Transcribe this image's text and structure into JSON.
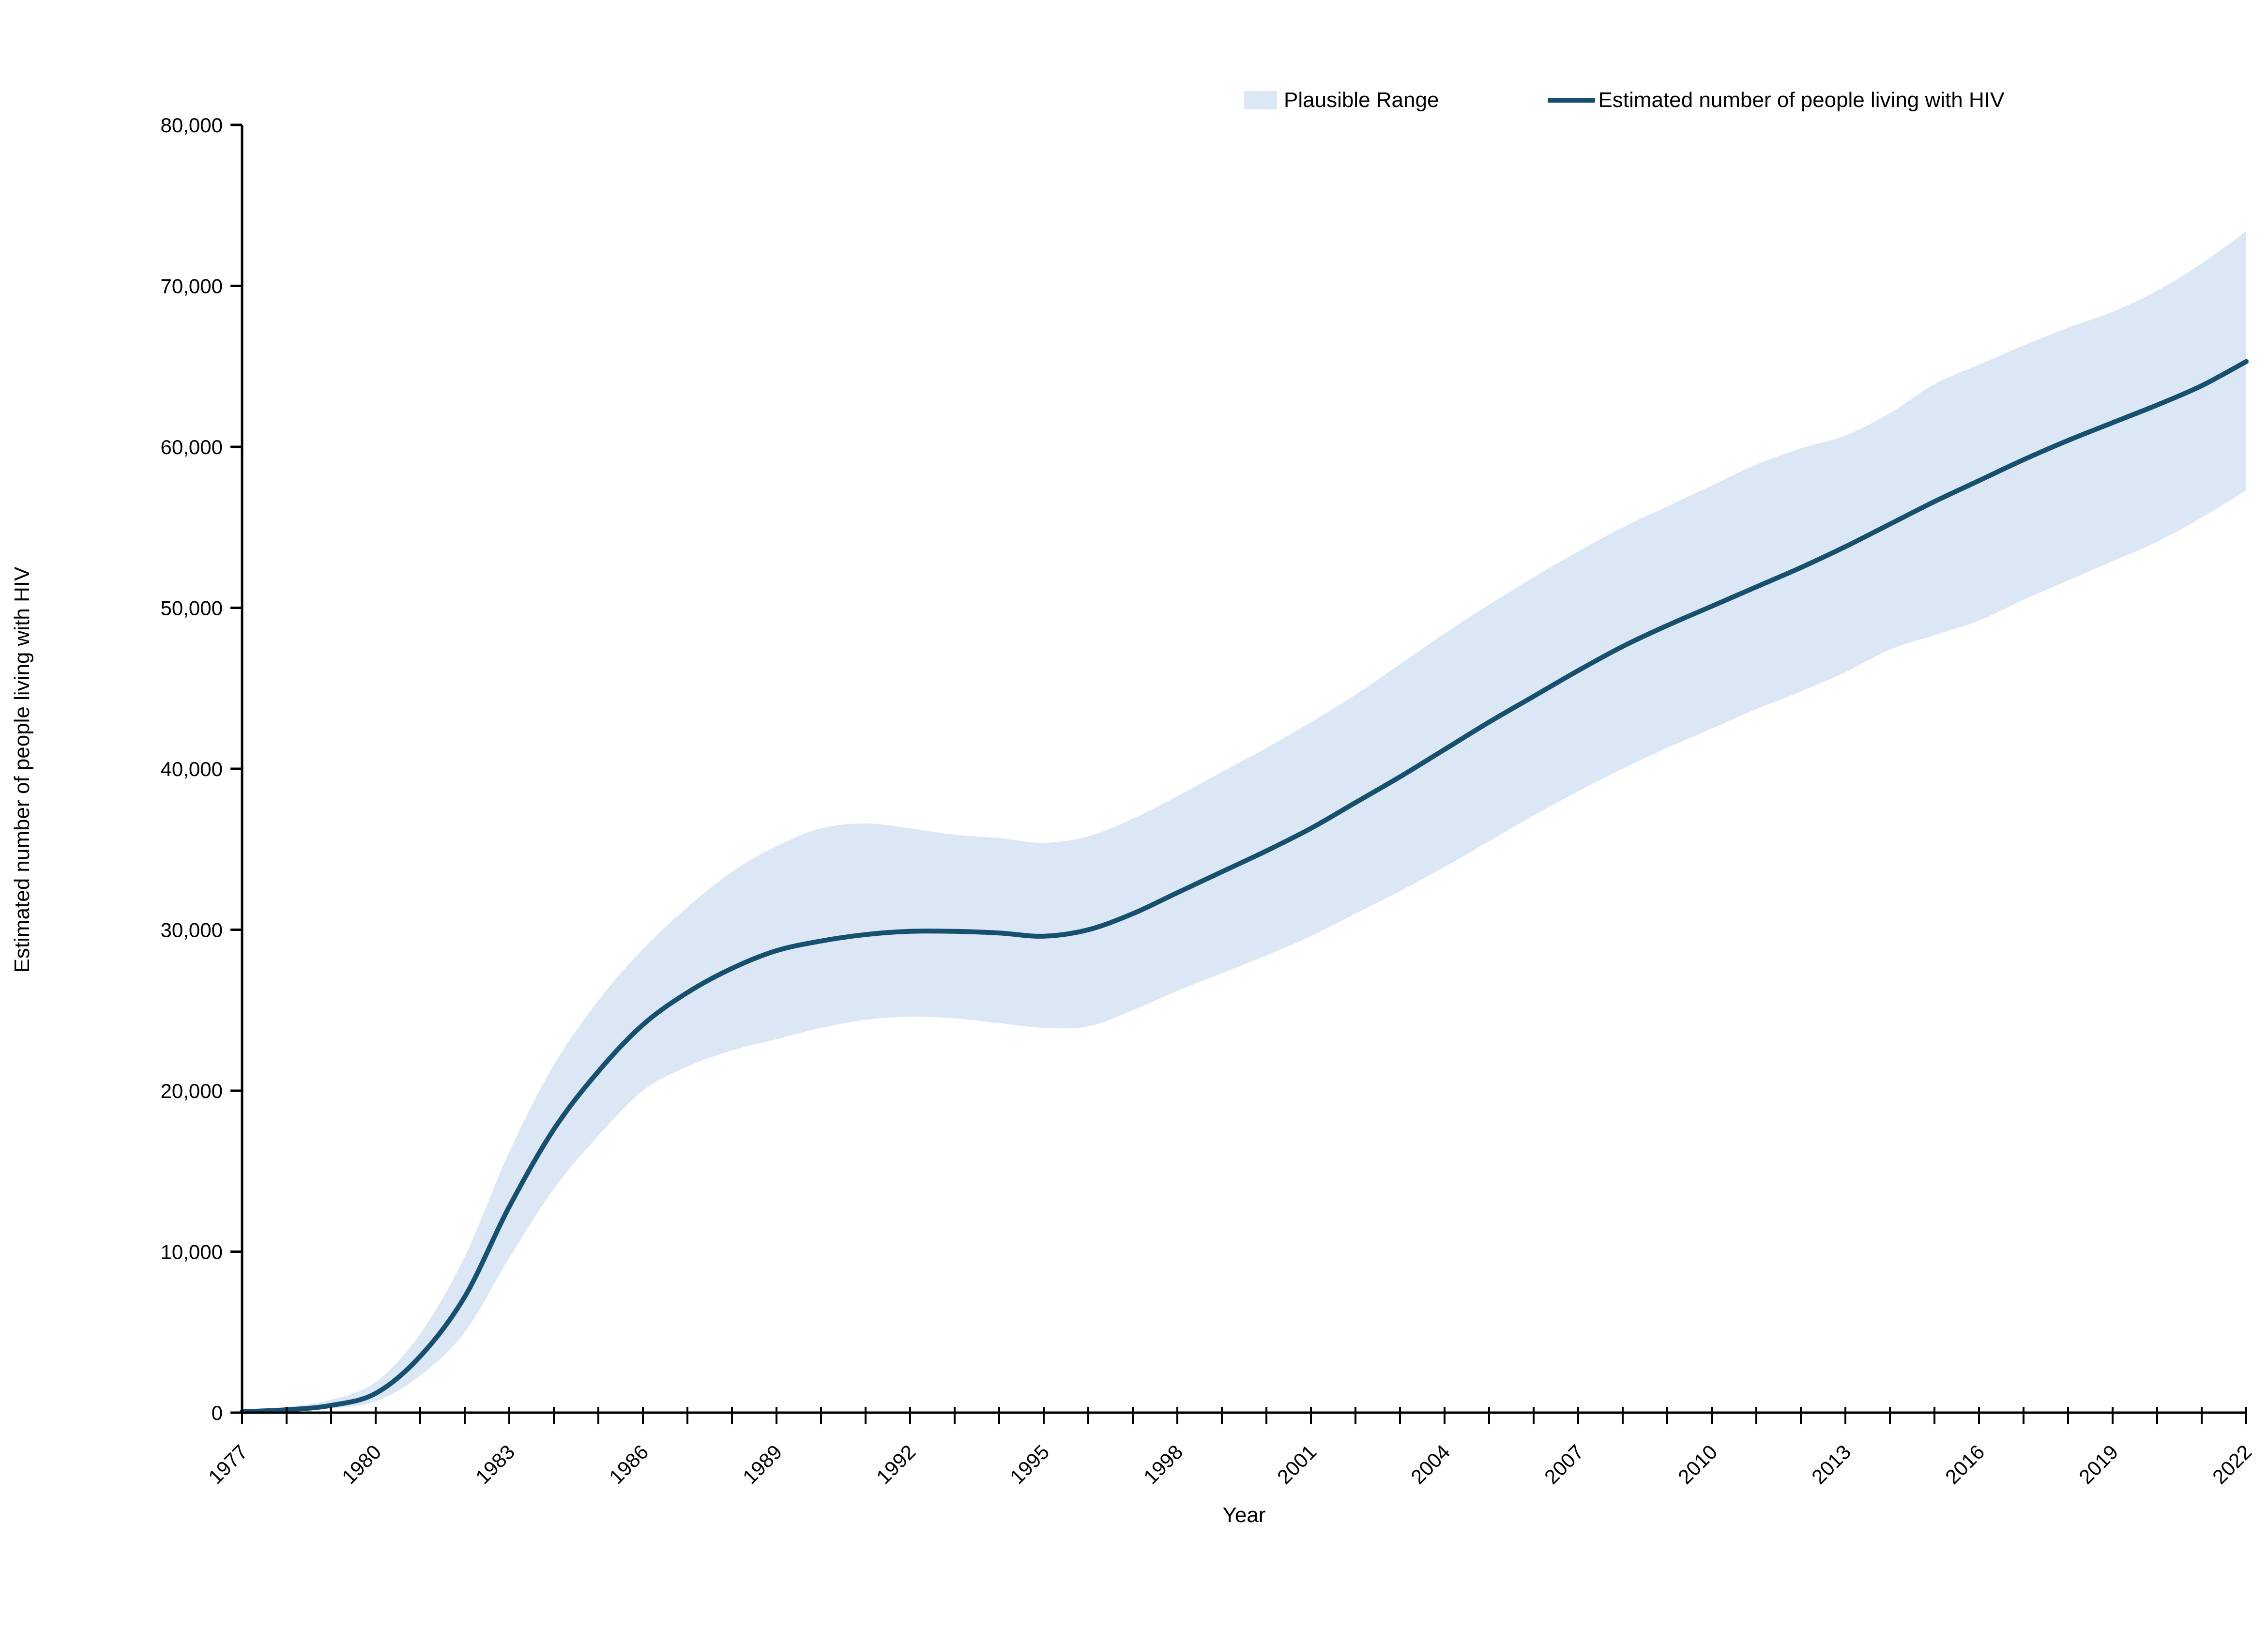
{
  "page": {
    "background": "#ffffff"
  },
  "legend": {
    "items": [
      {
        "label": "Plausible Range",
        "swatch": "band"
      },
      {
        "label": "Estimated number of people living with HIV",
        "swatch": "line"
      }
    ]
  },
  "chart_data": {
    "type": "line",
    "title": "",
    "xlabel": "Year",
    "ylabel": "Estimated number of people living with HIV",
    "x": [
      1977,
      1978,
      1979,
      1980,
      1981,
      1982,
      1983,
      1984,
      1985,
      1986,
      1987,
      1988,
      1989,
      1990,
      1991,
      1992,
      1993,
      1994,
      1995,
      1996,
      1997,
      1998,
      1999,
      2000,
      2001,
      2002,
      2003,
      2004,
      2005,
      2006,
      2007,
      2008,
      2009,
      2010,
      2011,
      2012,
      2013,
      2014,
      2015,
      2016,
      2017,
      2018,
      2019,
      2020,
      2021,
      2022
    ],
    "series": [
      {
        "name": "Estimated number of people living with HIV",
        "values": [
          60,
          180,
          450,
          1200,
          3500,
          7200,
          12800,
          17600,
          21200,
          24100,
          26100,
          27600,
          28700,
          29300,
          29700,
          29900,
          29900,
          29800,
          29600,
          30000,
          31000,
          32300,
          33600,
          34900,
          36300,
          37900,
          39500,
          41200,
          42900,
          44500,
          46100,
          47600,
          48900,
          50100,
          51300,
          52500,
          53800,
          55200,
          56600,
          57900,
          59200,
          60400,
          61500,
          62600,
          63800,
          65300
        ]
      }
    ],
    "band": {
      "name": "Plausible Range",
      "lower": [
        0,
        80,
        250,
        700,
        2300,
        5000,
        9600,
        13900,
        17200,
        20000,
        21500,
        22500,
        23200,
        23900,
        24400,
        24600,
        24500,
        24200,
        23900,
        24000,
        25000,
        26200,
        27300,
        28400,
        29600,
        31000,
        32400,
        33900,
        35500,
        37100,
        38600,
        40000,
        41300,
        42500,
        43700,
        44800,
        46000,
        47400,
        48300,
        49200,
        50500,
        51700,
        52900,
        54100,
        55600,
        57300
      ],
      "upper": [
        130,
        350,
        800,
        1900,
        4900,
        9700,
        16200,
        21600,
        25600,
        28800,
        31400,
        33600,
        35200,
        36300,
        36600,
        36300,
        35900,
        35700,
        35400,
        35800,
        36900,
        38300,
        39800,
        41300,
        42900,
        44600,
        46500,
        48400,
        50200,
        51900,
        53500,
        55000,
        56300,
        57600,
        58900,
        59900,
        60700,
        62100,
        63900,
        65100,
        66300,
        67400,
        68400,
        69700,
        71400,
        73400
      ]
    },
    "ylim": [
      0,
      80000
    ],
    "y_ticks": [
      0,
      10000,
      20000,
      30000,
      40000,
      50000,
      60000,
      70000,
      80000
    ],
    "x_tick_labels": [
      1977,
      1980,
      1983,
      1986,
      1989,
      1992,
      1995,
      1998,
      2001,
      2004,
      2007,
      2010,
      2013,
      2016,
      2019,
      2022
    ],
    "grid": false,
    "legend_position": "top",
    "colors": {
      "band": "#dbe7f5",
      "line": "#17506f",
      "axis": "#000000",
      "text": "#000000"
    }
  }
}
